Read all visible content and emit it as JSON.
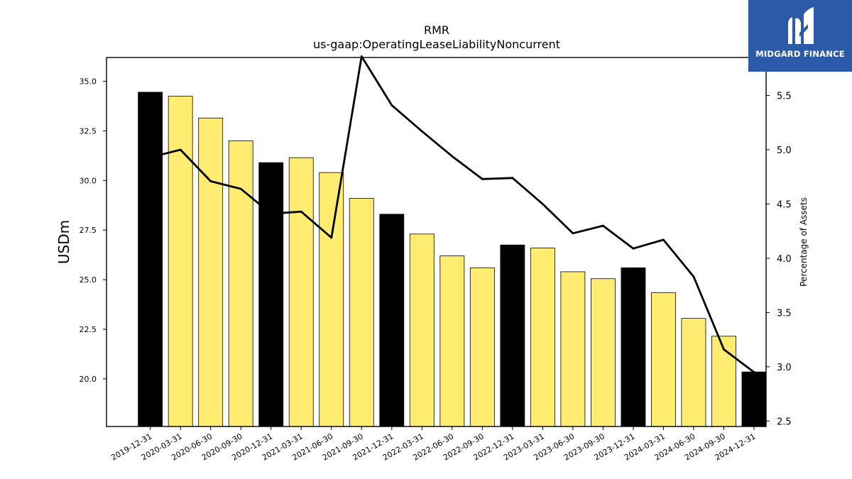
{
  "chart_data": {
    "type": "bar",
    "title": "RMR",
    "subtitle": "us-gaap:OperatingLeaseLiabilityNoncurrent",
    "ylabel": "USDm",
    "y2label": "Percentage of Assets",
    "ylim": [
      17.6,
      36.2
    ],
    "y2lim": [
      2.45,
      5.85
    ],
    "yticks": [
      "20.0",
      "22.5",
      "25.0",
      "27.5",
      "30.0",
      "32.5",
      "35.0"
    ],
    "y2ticks": [
      "2.5",
      "3.0",
      "3.5",
      "4.0",
      "4.5",
      "5.0",
      "5.5"
    ],
    "categories": [
      "2019-12-31",
      "2020-03-31",
      "2020-06-30",
      "2020-09-30",
      "2020-12-31",
      "2021-03-31",
      "2021-06-30",
      "2021-09-30",
      "2021-12-31",
      "2022-03-31",
      "2022-06-30",
      "2022-09-30",
      "2022-12-31",
      "2023-03-31",
      "2023-06-30",
      "2023-09-30",
      "2023-12-31",
      "2024-03-31",
      "2024-06-30",
      "2024-09-30",
      "2024-12-31"
    ],
    "series": [
      {
        "type": "bar",
        "values": [
          34.45,
          34.25,
          33.15,
          32.0,
          30.9,
          31.15,
          30.4,
          29.1,
          28.3,
          27.3,
          26.2,
          25.6,
          26.75,
          26.6,
          25.4,
          25.05,
          25.6,
          24.35,
          23.05,
          22.15,
          20.35
        ],
        "colors": [
          "#000000",
          "#ffec70",
          "#ffec70",
          "#ffec70",
          "#000000",
          "#ffec70",
          "#ffec70",
          "#ffec70",
          "#000000",
          "#ffec70",
          "#ffec70",
          "#ffec70",
          "#000000",
          "#ffec70",
          "#ffec70",
          "#ffec70",
          "#000000",
          "#ffec70",
          "#ffec70",
          "#ffec70",
          "#000000"
        ]
      },
      {
        "type": "line",
        "axis": "right",
        "color": "#000000",
        "values": [
          4.93,
          5.0,
          4.71,
          4.64,
          4.41,
          4.43,
          4.19,
          5.86,
          5.41,
          5.17,
          4.94,
          4.73,
          4.74,
          4.5,
          4.23,
          4.3,
          4.09,
          4.17,
          3.83,
          3.16,
          2.95
        ]
      }
    ],
    "grid": false,
    "legend": "none"
  },
  "logo": {
    "text": "MIDGARD FINANCE",
    "color": "#2d5aa8"
  }
}
